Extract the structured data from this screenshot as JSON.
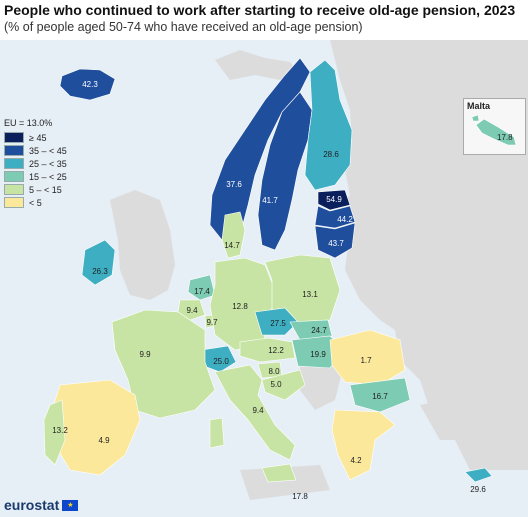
{
  "title": "People who continued to work after starting to receive old-age pension, 2023",
  "subtitle": "(% of people aged 50-74 who have received an old-age pension)",
  "legend": {
    "title": "EU = 13.0%",
    "items": [
      {
        "label": "≥ 45",
        "color": "#0b1f5c"
      },
      {
        "label": "35 – < 45",
        "color": "#1f4e9c"
      },
      {
        "label": "25 – < 35",
        "color": "#3eaec2"
      },
      {
        "label": "15 – < 25",
        "color": "#7ccbb2"
      },
      {
        "label": "5 – < 15",
        "color": "#c8e4a4"
      },
      {
        "label": "< 5",
        "color": "#fbe89a"
      }
    ]
  },
  "inset": {
    "title": "Malta",
    "value": "17.8"
  },
  "values": {
    "iceland": "42.3",
    "norway": "37.6",
    "sweden": "41.7",
    "finland": "28.6",
    "estonia": "54.9",
    "latvia": "44.2",
    "lithuania": "43.7",
    "ireland": "26.3",
    "denmark": "14.7",
    "netherlands": "17.4",
    "belgium": "9.4",
    "luxembourg": "9.7",
    "germany": "12.8",
    "poland": "13.1",
    "czechia": "27.5",
    "slovakia": "24.7",
    "hungary": "19.9",
    "austria": "12.2",
    "switzerland": "25.0",
    "france": "9.9",
    "slovenia": "8.0",
    "croatia": "5.0",
    "italy": "9.4",
    "romania": "1.7",
    "bulgaria": "16.7",
    "greece": "4.2",
    "spain": "4.9",
    "portugal": "13.2",
    "cyprus": "29.6",
    "malta_south": "17.8"
  },
  "logo": "eurostat"
}
